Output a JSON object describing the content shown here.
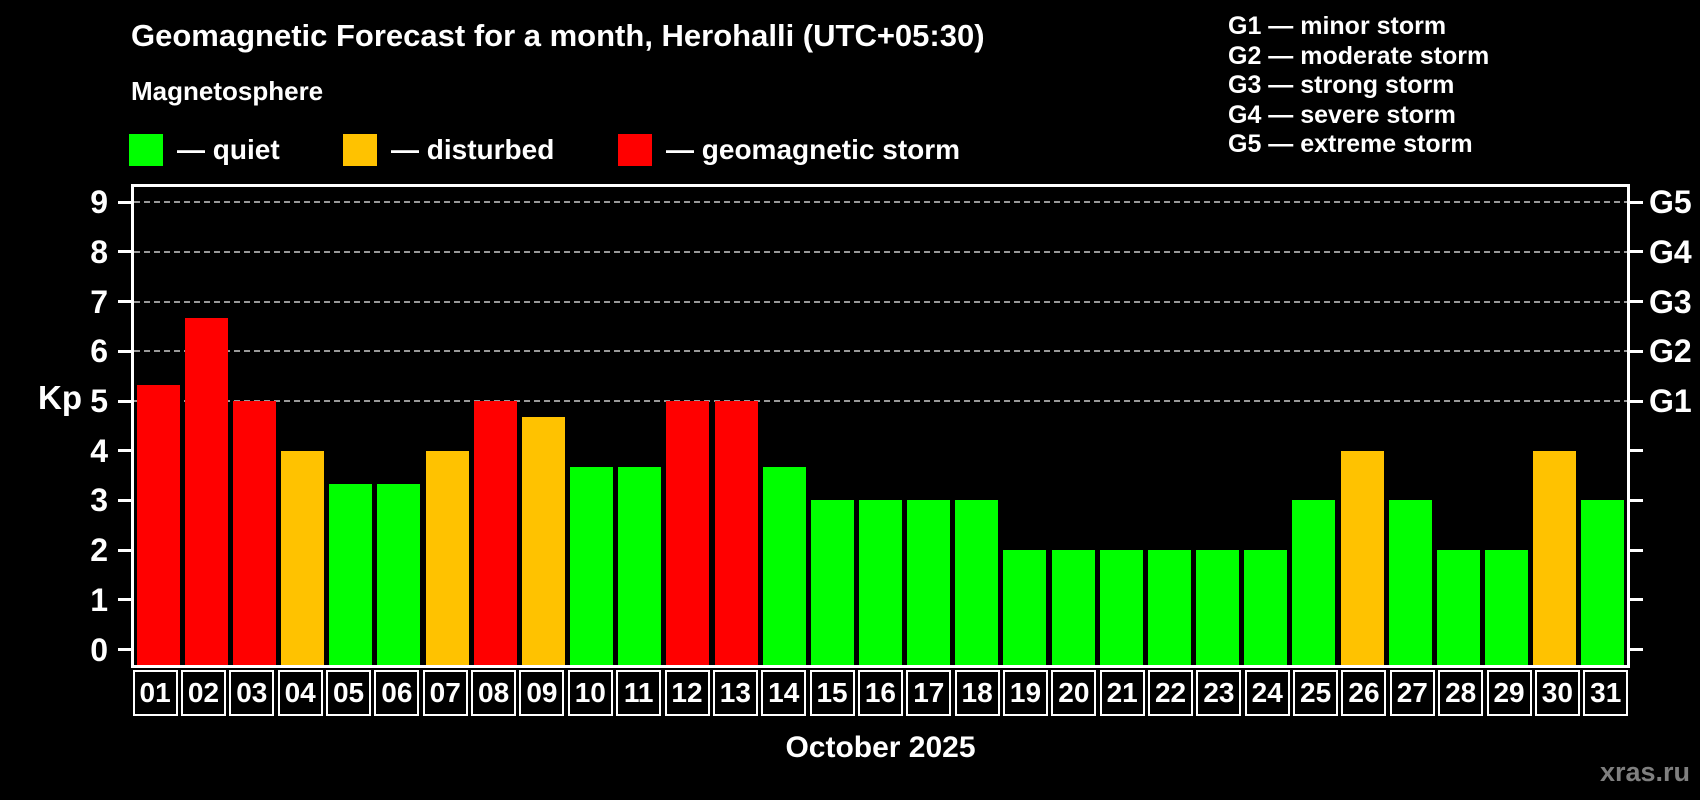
{
  "header": {
    "title": "Geomagnetic Forecast for a month, Herohalli (UTC+05:30)",
    "subtitle": "Magnetosphere"
  },
  "legend": {
    "items": [
      {
        "status": "quiet",
        "label": "— quiet"
      },
      {
        "status": "disturbed",
        "label": "— disturbed"
      },
      {
        "status": "storm",
        "label": "— geomagnetic storm"
      }
    ]
  },
  "storm_scale_legend": {
    "items": [
      "G1 — minor storm",
      "G2 — moderate storm",
      "G3 — strong storm",
      "G4 — severe storm",
      "G5 — extreme storm"
    ]
  },
  "watermark": "xras.ru",
  "colors": {
    "quiet": "#00ff00",
    "disturbed": "#ffc200",
    "storm": "#ff0000",
    "background": "#000000",
    "axis": "#ffffff",
    "gridline": "#999999",
    "watermark_text": "#7f7f7f"
  },
  "chart_data": {
    "type": "bar",
    "title": "Geomagnetic Forecast for a month, Herohalli (UTC+05:30)",
    "subtitle": "Magnetosphere",
    "xlabel": "October 2025",
    "ylabel": "Kp",
    "ylim": [
      0,
      9
    ],
    "grid": "horizontal dashed lines at Kp 5,6,7,8,9 (G1–G5 levels)",
    "legend_position": "top-left",
    "categories": [
      "01",
      "02",
      "03",
      "04",
      "05",
      "06",
      "07",
      "08",
      "09",
      "10",
      "11",
      "12",
      "13",
      "14",
      "15",
      "16",
      "17",
      "18",
      "19",
      "20",
      "21",
      "22",
      "23",
      "24",
      "25",
      "26",
      "27",
      "28",
      "29",
      "30",
      "31"
    ],
    "values": [
      5.33,
      6.67,
      5.0,
      4.0,
      3.33,
      3.33,
      4.0,
      5.0,
      4.67,
      3.67,
      3.67,
      5.0,
      5.0,
      3.67,
      3.0,
      3.0,
      3.0,
      3.0,
      2.0,
      2.0,
      2.0,
      2.0,
      2.0,
      2.0,
      3.0,
      4.0,
      3.0,
      2.0,
      2.0,
      4.0,
      3.0
    ],
    "statuses": [
      "storm",
      "storm",
      "storm",
      "disturbed",
      "quiet",
      "quiet",
      "disturbed",
      "storm",
      "disturbed",
      "quiet",
      "quiet",
      "storm",
      "storm",
      "quiet",
      "quiet",
      "quiet",
      "quiet",
      "quiet",
      "quiet",
      "quiet",
      "quiet",
      "quiet",
      "quiet",
      "quiet",
      "quiet",
      "disturbed",
      "quiet",
      "quiet",
      "quiet",
      "disturbed",
      "quiet"
    ],
    "yticks_left": [
      0,
      1,
      2,
      3,
      4,
      5,
      6,
      7,
      8,
      9
    ],
    "right_axis": {
      "G1": 5,
      "G2": 6,
      "G3": 7,
      "G4": 8,
      "G5": 9
    },
    "gridline_levels": [
      5,
      6,
      7,
      8,
      9
    ]
  }
}
